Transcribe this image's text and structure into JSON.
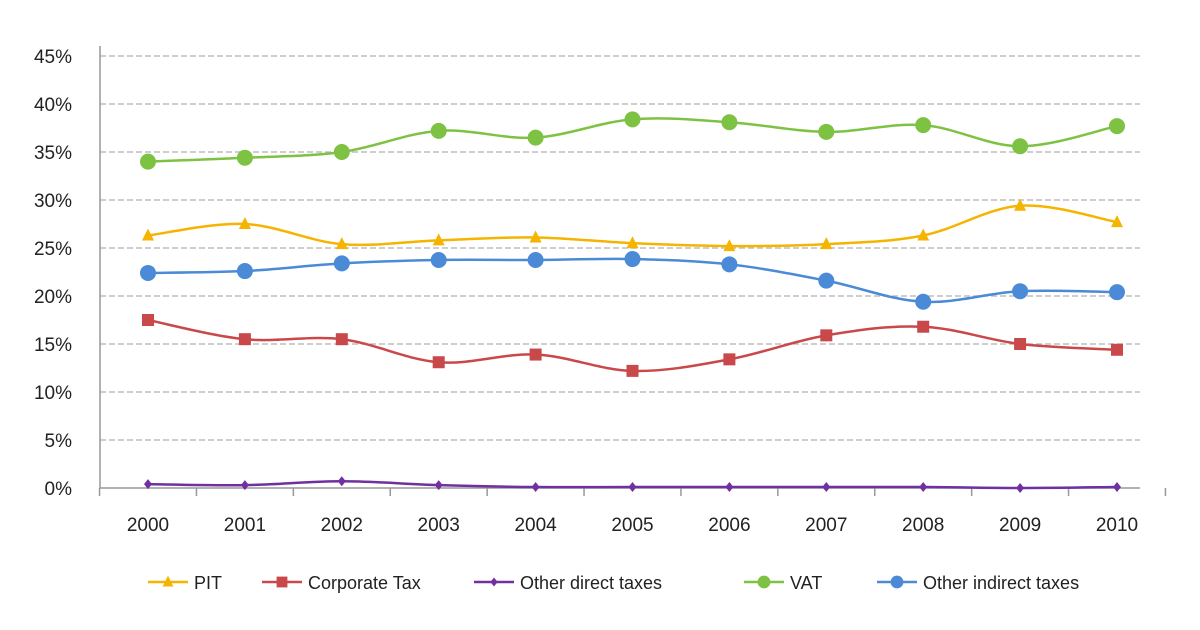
{
  "chart_data": {
    "type": "line",
    "title": "",
    "xlabel": "",
    "ylabel": "",
    "x": [
      "2000",
      "2001",
      "2002",
      "2003",
      "2004",
      "2005",
      "2006",
      "2007",
      "2008",
      "2009",
      "2010"
    ],
    "ylim": [
      0,
      45
    ],
    "yticks": [
      "0%",
      "5%",
      "10%",
      "15%",
      "20%",
      "25%",
      "30%",
      "35%",
      "40%",
      "45%"
    ],
    "grid": true,
    "smooth": true,
    "legend_position": "bottom",
    "series": [
      {
        "name": "PIT",
        "color": "#f5b400",
        "marker": "triangle",
        "values": [
          26.3,
          27.5,
          25.4,
          25.8,
          26.1,
          25.5,
          25.2,
          25.4,
          26.3,
          29.4,
          27.7
        ]
      },
      {
        "name": "Corporate Tax",
        "color": "#c9484a",
        "marker": "square",
        "values": [
          17.5,
          15.5,
          15.5,
          13.1,
          13.9,
          12.2,
          13.4,
          15.9,
          16.8,
          15.0,
          14.4
        ]
      },
      {
        "name": "Other direct taxes",
        "color": "#7030a0",
        "marker": "diamond",
        "values": [
          0.4,
          0.3,
          0.7,
          0.3,
          0.1,
          0.1,
          0.1,
          0.1,
          0.1,
          0.0,
          0.1
        ]
      },
      {
        "name": "VAT",
        "color": "#7dc242",
        "marker": "circle",
        "values": [
          34.0,
          34.4,
          35.0,
          37.2,
          36.5,
          38.4,
          38.1,
          37.1,
          37.8,
          35.6,
          37.7
        ]
      },
      {
        "name": "Other indirect taxes",
        "color": "#4a8ad6",
        "marker": "circle",
        "values": [
          22.4,
          22.6,
          23.4,
          23.75,
          23.75,
          23.85,
          23.3,
          21.6,
          19.4,
          20.5,
          20.4
        ]
      }
    ]
  }
}
